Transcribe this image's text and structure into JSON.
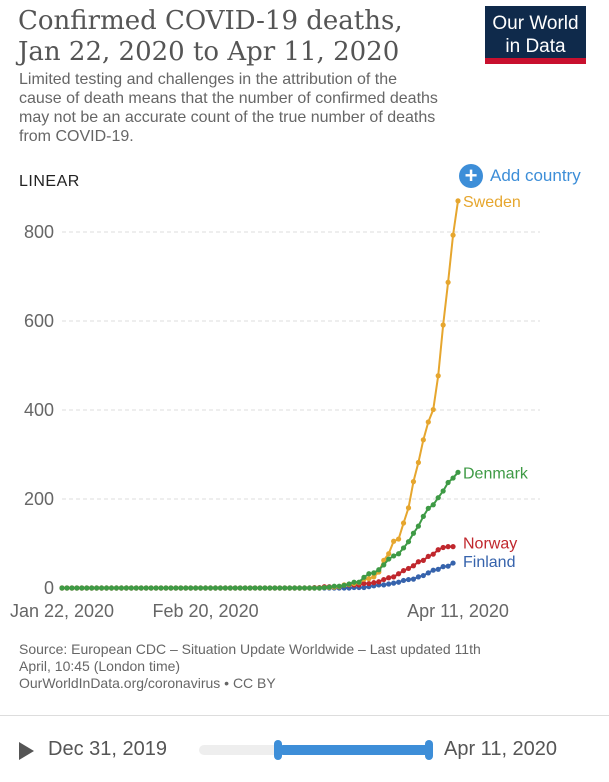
{
  "header": {
    "title_line1": "Confirmed COVID-19 deaths,",
    "title_line2": "Jan 22, 2020 to Apr 11, 2020",
    "subtitle": "Limited testing and challenges in the attribution of the cause of death means that the number of confirmed deaths may not be an accurate count of the true number of deaths from COVID-19.",
    "logo_line1": "Our World",
    "logo_line2": "in Data"
  },
  "controls": {
    "scale_label": "LINEAR",
    "add_country_label": "Add country"
  },
  "colors": {
    "Sweden": "#e6a62e",
    "Denmark": "#3e9a45",
    "Norway": "#c0272d",
    "Finland": "#3663ac",
    "gridline": "#dddddd",
    "accent": "#3d8ed8"
  },
  "chart_data": {
    "type": "line",
    "title": "Confirmed COVID-19 deaths, Jan 22, 2020 to Apr 11, 2020",
    "x_start": "Jan 22, 2020",
    "x_end": "Apr 11, 2020",
    "x_ticks": [
      "Jan 22, 2020",
      "Feb 20, 2020",
      "Apr 11, 2020"
    ],
    "y_ticks": [
      0,
      200,
      400,
      600,
      800
    ],
    "ylim": [
      0,
      900
    ],
    "grid": true,
    "scale": "linear",
    "series": [
      {
        "name": "Sweden",
        "start": "Mar 5, 2020",
        "values": [
          0,
          0,
          0,
          0,
          0,
          0,
          0,
          0,
          0,
          0,
          1,
          1,
          2,
          3,
          7,
          8,
          10,
          12,
          20,
          21,
          25,
          36,
          62,
          77,
          105,
          110,
          146,
          180,
          239,
          282,
          333,
          373,
          401,
          477,
          591,
          687,
          793,
          870
        ]
      },
      {
        "name": "Denmark",
        "start": "Mar 8, 2020",
        "values": [
          0,
          0,
          0,
          0,
          0,
          0,
          0,
          1,
          2,
          4,
          4,
          6,
          9,
          13,
          13,
          24,
          32,
          34,
          41,
          52,
          65,
          72,
          77,
          90,
          104,
          123,
          139,
          161,
          179,
          187,
          203,
          218,
          237,
          247,
          260
        ]
      },
      {
        "name": "Norway",
        "start": "Mar 11, 2020",
        "values": [
          0,
          0,
          1,
          1,
          3,
          3,
          3,
          3,
          6,
          7,
          7,
          7,
          10,
          10,
          12,
          14,
          19,
          23,
          25,
          32,
          39,
          44,
          50,
          59,
          62,
          71,
          76,
          86,
          91,
          93,
          93
        ]
      },
      {
        "name": "Finland",
        "start": "Mar 17, 2020",
        "values": [
          0,
          0,
          0,
          0,
          1,
          1,
          1,
          3,
          5,
          7,
          7,
          9,
          11,
          13,
          17,
          19,
          20,
          25,
          28,
          34,
          40,
          42,
          48,
          49,
          56
        ]
      }
    ]
  },
  "footer": {
    "source_line1": "Source: European CDC – Situation Update Worldwide – Last updated 11th",
    "source_line2": "April, 10:45 (London time)",
    "source_line3": "OurWorldInData.org/coronavirus • CC BY"
  },
  "timeline": {
    "start_label": "Dec 31, 2019",
    "end_label": "Apr 11, 2020",
    "range_start_fraction": 0.2,
    "range_end_fraction": 1.0
  }
}
